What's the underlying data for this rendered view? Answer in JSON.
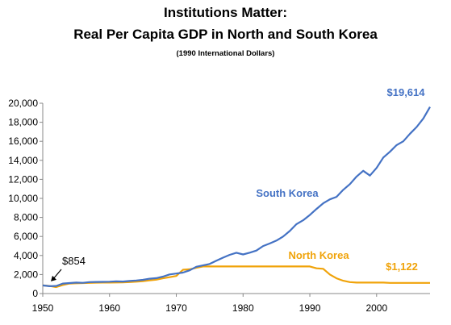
{
  "chart_data": {
    "type": "line",
    "title": "Institutions Matter:",
    "subtitle": "Real Per Capita GDP in North and South Korea",
    "units_note": "(1990 International Dollars)",
    "xlim": [
      1950,
      2008
    ],
    "ylim": [
      0,
      20000
    ],
    "x_ticks": [
      "1950",
      "1960",
      "1970",
      "1980",
      "1990",
      "2000"
    ],
    "y_ticks": [
      "0",
      "2,000",
      "4,000",
      "6,000",
      "8,000",
      "10,000",
      "12,000",
      "14,000",
      "16,000",
      "18,000",
      "20,000"
    ],
    "grid": false,
    "colors": {
      "south": "#4472C4",
      "north": "#F0A30A"
    },
    "series": [
      {
        "name": "South Korea",
        "x": [
          1950,
          1951,
          1952,
          1953,
          1954,
          1955,
          1956,
          1957,
          1958,
          1959,
          1960,
          1961,
          1962,
          1963,
          1964,
          1965,
          1966,
          1967,
          1968,
          1969,
          1970,
          1971,
          1972,
          1973,
          1974,
          1975,
          1976,
          1977,
          1978,
          1979,
          1980,
          1981,
          1982,
          1983,
          1984,
          1985,
          1986,
          1987,
          1988,
          1989,
          1990,
          1991,
          1992,
          1993,
          1994,
          1995,
          1996,
          1997,
          1998,
          1999,
          2000,
          2001,
          2002,
          2003,
          2004,
          2005,
          2006,
          2007,
          2008
        ],
        "values": [
          854,
          770,
          800,
          1050,
          1100,
          1150,
          1130,
          1200,
          1220,
          1230,
          1250,
          1280,
          1260,
          1320,
          1370,
          1440,
          1560,
          1620,
          1780,
          2010,
          2100,
          2200,
          2440,
          2810,
          2960,
          3110,
          3450,
          3770,
          4070,
          4290,
          4110,
          4300,
          4520,
          4990,
          5260,
          5570,
          5990,
          6580,
          7300,
          7700,
          8250,
          8890,
          9480,
          9900,
          10160,
          10900,
          11500,
          12300,
          12900,
          12400,
          13200,
          14300,
          14900,
          15600,
          16000,
          16800,
          17500,
          18400,
          19614
        ]
      },
      {
        "name": "North Korea",
        "x": [
          1950,
          1951,
          1952,
          1953,
          1954,
          1955,
          1956,
          1957,
          1958,
          1959,
          1960,
          1961,
          1962,
          1963,
          1964,
          1965,
          1966,
          1967,
          1968,
          1969,
          1970,
          1971,
          1972,
          1973,
          1974,
          1975,
          1976,
          1977,
          1978,
          1979,
          1980,
          1981,
          1982,
          1983,
          1984,
          1985,
          1986,
          1987,
          1988,
          1989,
          1990,
          1991,
          1992,
          1993,
          1994,
          1995,
          1996,
          1997,
          1998,
          1999,
          2000,
          2001,
          2002,
          2003,
          2004,
          2005,
          2006,
          2007,
          2008
        ],
        "values": [
          854,
          800,
          680,
          900,
          1050,
          1080,
          1100,
          1120,
          1140,
          1150,
          1150,
          1160,
          1180,
          1200,
          1250,
          1300,
          1380,
          1460,
          1600,
          1720,
          1850,
          2500,
          2550,
          2700,
          2850,
          2850,
          2850,
          2850,
          2850,
          2850,
          2850,
          2850,
          2850,
          2850,
          2850,
          2850,
          2850,
          2850,
          2850,
          2850,
          2850,
          2650,
          2600,
          2000,
          1600,
          1350,
          1200,
          1150,
          1150,
          1150,
          1150,
          1150,
          1122,
          1120,
          1120,
          1120,
          1120,
          1122,
          1122
        ]
      }
    ],
    "annotations": {
      "south_label": "South Korea",
      "north_label": "North Korea",
      "south_end": "$19,614",
      "north_end": "$1,122",
      "start_value": "$854"
    }
  }
}
